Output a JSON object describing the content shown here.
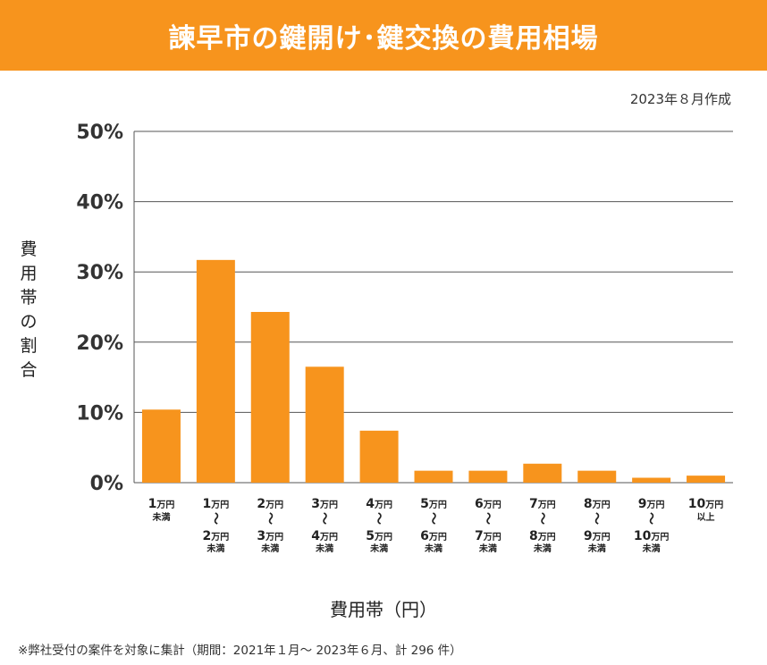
{
  "header": {
    "title": "諫早市の鍵開け･鍵交換の費用相場"
  },
  "date_note": "2023年８月作成",
  "footnote": "※弊社受付の案件を対象に集計（期間：2021年１月～ 2023年６月、計 296 件）",
  "colors": {
    "accent": "#f7941d",
    "bar": "#f7941d",
    "grid": "#555555"
  },
  "chart_data": {
    "type": "bar",
    "ylabel": "費用帯の割合",
    "xlabel": "費用帯（円）",
    "ylim": [
      0,
      50
    ],
    "yticks": [
      "0%",
      "10%",
      "20%",
      "30%",
      "40%",
      "50%"
    ],
    "grid": true,
    "categories": [
      "1万円未満",
      "1万円～2万円未満",
      "2万円～3万円未満",
      "3万円～4万円未満",
      "4万円～5万円未満",
      "5万円～6万円未満",
      "6万円～7万円未満",
      "7万円～8万円未満",
      "8万円～9万円未満",
      "9万円～10万円未満",
      "10万円以上"
    ],
    "category_labels": [
      {
        "top": "1",
        "top_unit": "万円",
        "top_sub": "未満"
      },
      {
        "top": "1",
        "top_unit": "万円",
        "bottom": "2",
        "bottom_unit": "万円",
        "sub": "未満"
      },
      {
        "top": "2",
        "top_unit": "万円",
        "bottom": "3",
        "bottom_unit": "万円",
        "sub": "未満"
      },
      {
        "top": "3",
        "top_unit": "万円",
        "bottom": "4",
        "bottom_unit": "万円",
        "sub": "未満"
      },
      {
        "top": "4",
        "top_unit": "万円",
        "bottom": "5",
        "bottom_unit": "万円",
        "sub": "未満"
      },
      {
        "top": "5",
        "top_unit": "万円",
        "bottom": "6",
        "bottom_unit": "万円",
        "sub": "未満"
      },
      {
        "top": "6",
        "top_unit": "万円",
        "bottom": "7",
        "bottom_unit": "万円",
        "sub": "未満"
      },
      {
        "top": "7",
        "top_unit": "万円",
        "bottom": "8",
        "bottom_unit": "万円",
        "sub": "未満"
      },
      {
        "top": "8",
        "top_unit": "万円",
        "bottom": "9",
        "bottom_unit": "万円",
        "sub": "未満"
      },
      {
        "top": "9",
        "top_unit": "万円",
        "bottom": "10",
        "bottom_unit": "万円",
        "sub": "未満"
      },
      {
        "top": "10",
        "top_unit": "万円",
        "top_sub": "以上"
      }
    ],
    "values": [
      10.4,
      31.7,
      24.3,
      16.5,
      7.4,
      1.7,
      1.7,
      2.7,
      1.7,
      0.7,
      1.0
    ]
  }
}
